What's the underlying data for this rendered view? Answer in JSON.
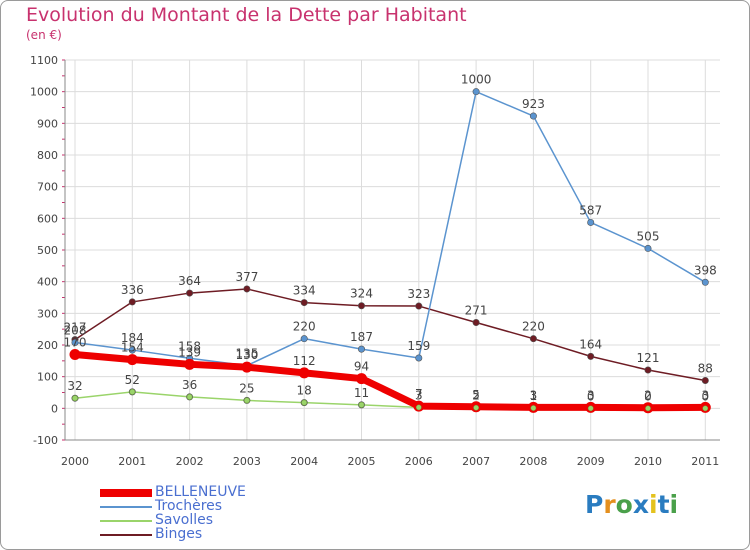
{
  "title": "Evolution du Montant de la Dette par Habitant",
  "subtitle": "(en €)",
  "logo": {
    "text": "Proxiti",
    "letters": [
      "P",
      "r",
      "o",
      "x",
      "i",
      "t",
      "i"
    ],
    "colors": [
      "#2a7cc0",
      "#e48f1e",
      "#4aa04a",
      "#2a7cc0",
      "#e4c21e",
      "#2a7cc0",
      "#4aa04a"
    ]
  },
  "chart_data": {
    "type": "line",
    "x": [
      "2000",
      "2001",
      "2002",
      "2003",
      "2004",
      "2005",
      "2006",
      "2007",
      "2008",
      "2009",
      "2010",
      "2011"
    ],
    "ylim": [
      -100,
      1100
    ],
    "yticks": [
      -100,
      0,
      100,
      200,
      300,
      400,
      500,
      600,
      700,
      800,
      900,
      1000,
      1100
    ],
    "grid": true,
    "series": [
      {
        "name": "Binges",
        "color": "#6e1c24",
        "values": [
          217,
          336,
          364,
          377,
          334,
          324,
          323,
          271,
          220,
          164,
          121,
          88
        ]
      },
      {
        "name": "Trochères",
        "color": "#5b94cf",
        "values": [
          208,
          184,
          158,
          135,
          220,
          187,
          159,
          1000,
          923,
          587,
          505,
          398
        ]
      },
      {
        "name": "Savolles",
        "color": "#9ad46a",
        "values": [
          32,
          52,
          36,
          25,
          18,
          11,
          3,
          2,
          1,
          0,
          0,
          0
        ]
      },
      {
        "name": "BELLENEUVE",
        "color": "#ee0000",
        "values": [
          170,
          154,
          139,
          130,
          112,
          94,
          7,
          5,
          3,
          3,
          2,
          3
        ]
      }
    ],
    "legend": [
      "BELLENEUVE",
      "Trochères",
      "Savolles",
      "Binges"
    ]
  }
}
